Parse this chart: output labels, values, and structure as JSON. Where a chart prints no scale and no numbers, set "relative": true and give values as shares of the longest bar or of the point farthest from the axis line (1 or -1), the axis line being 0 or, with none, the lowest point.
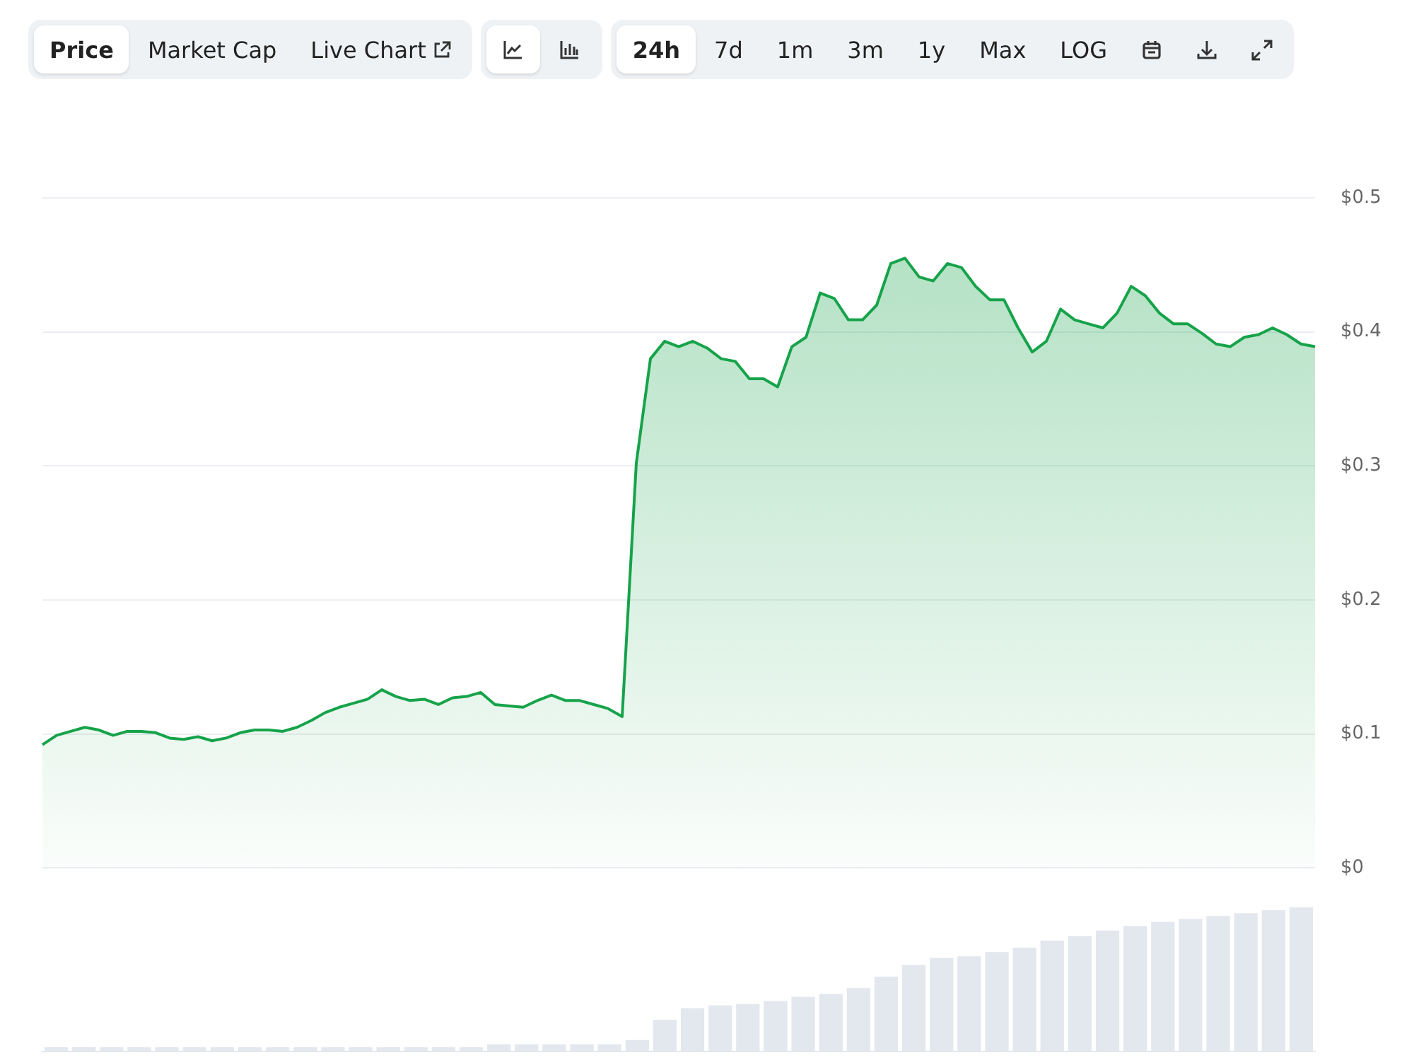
{
  "chart_data": [
    {
      "type": "other",
      "annotations": [
        "Price",
        "Market Cap",
        "Live Chart",
        "24h",
        "7d",
        "1m",
        "3m",
        "1y",
        "Max",
        "LOG"
      ]
    },
    {
      "type": "area",
      "categories": [
        null,
        null,
        null,
        null,
        null,
        null,
        null,
        null,
        null,
        null,
        null,
        null,
        null,
        null,
        null,
        null,
        null,
        null,
        null,
        null,
        null,
        null,
        null,
        null,
        null,
        null,
        null,
        null,
        null,
        null,
        null,
        null,
        null,
        null,
        null,
        null,
        null,
        null,
        null,
        null,
        null,
        null,
        null,
        null,
        null,
        null,
        null,
        null,
        null,
        null,
        null,
        null,
        null,
        null,
        null,
        null,
        null,
        null,
        null,
        null,
        null,
        null,
        null,
        null,
        null,
        null,
        null,
        null,
        null,
        null,
        null,
        null,
        null,
        null,
        null,
        null,
        null,
        null,
        null,
        null,
        null,
        null,
        null,
        null,
        null,
        null,
        null,
        null,
        null,
        null,
        null
      ],
      "series": [
        {
          "color": "#16a34a",
          "values": [
            0.092,
            0.099,
            0.102,
            0.105,
            0.103,
            0.099,
            0.102,
            0.102,
            0.101,
            0.097,
            0.096,
            0.098,
            0.095,
            0.097,
            0.101,
            0.103,
            0.103,
            0.102,
            0.105,
            0.11,
            0.116,
            0.12,
            0.123,
            0.126,
            0.133,
            0.128,
            0.125,
            0.126,
            0.122,
            0.127,
            0.128,
            0.131,
            0.122,
            0.121,
            0.12,
            0.125,
            0.129,
            0.125,
            0.125,
            0.122,
            0.119,
            0.113,
            0.302,
            0.38,
            0.393,
            0.389,
            0.393,
            0.388,
            0.38,
            0.378,
            0.365,
            0.365,
            0.359,
            0.389,
            0.396,
            0.429,
            0.425,
            0.409,
            0.409,
            0.42,
            0.451,
            0.455,
            0.441,
            0.438,
            0.451,
            0.448,
            0.434,
            0.424,
            0.424,
            0.403,
            0.385,
            0.393,
            0.417,
            0.409,
            0.406,
            0.403,
            0.414,
            0.434,
            0.427,
            0.414,
            0.406,
            0.406,
            0.399,
            0.391,
            0.389,
            0.396,
            0.398,
            0.403,
            0.398,
            0.391,
            0.389
          ]
        }
      ],
      "ylim": [
        0,
        0.5
      ],
      "yticks": [
        {
          "value": 0,
          "label": "$0"
        },
        {
          "value": 0.1,
          "label": "$0.1"
        },
        {
          "value": 0.2,
          "label": "$0.2"
        },
        {
          "value": 0.3,
          "label": "$0.3"
        },
        {
          "value": 0.4,
          "label": "$0.4"
        },
        {
          "value": 0.5,
          "label": "$0.5"
        }
      ],
      "grid": "y",
      "tick_labels": "y",
      "legend": false
    },
    {
      "type": "bar",
      "relative": true,
      "categories": [
        null,
        null,
        null,
        null,
        null,
        null,
        null,
        null,
        null,
        null,
        null,
        null,
        null,
        null,
        null,
        null,
        null,
        null,
        null,
        null,
        null,
        null,
        null,
        null,
        null,
        null,
        null,
        null,
        null,
        null,
        null,
        null,
        null,
        null,
        null,
        null,
        null,
        null,
        null,
        null,
        null,
        null,
        null,
        null,
        null,
        null
      ],
      "color": "#e3e7ee",
      "values": [
        0.03,
        0.03,
        0.03,
        0.03,
        0.03,
        0.03,
        0.03,
        0.03,
        0.03,
        0.03,
        0.03,
        0.03,
        0.03,
        0.03,
        0.03,
        0.03,
        0.05,
        0.05,
        0.05,
        0.05,
        0.05,
        0.08,
        0.22,
        0.3,
        0.32,
        0.33,
        0.35,
        0.38,
        0.4,
        0.44,
        0.52,
        0.6,
        0.65,
        0.66,
        0.69,
        0.72,
        0.77,
        0.8,
        0.84,
        0.87,
        0.9,
        0.92,
        0.94,
        0.96,
        0.98,
        1
      ],
      "legend": false
    }
  ]
}
